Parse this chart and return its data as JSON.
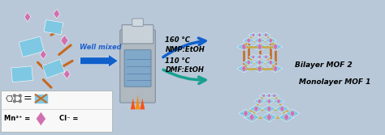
{
  "bg_color": "#dce6f0",
  "well_mixed_text": "Well mixed",
  "condition1_text": "160 °C\nNMP:EtOH",
  "condition2_text": "110 °C\nDMF:EtOH",
  "label1": "Monolayer MOF 1",
  "label2": "Bilayer MOF 2",
  "mn_label": "Mn²⁺ =",
  "cl_label": "Cl⁻ =",
  "ligand_color": "#7ec8e3",
  "node_color": "#d070b0",
  "linker_color": "#c8a840",
  "cl_color": "#c86820",
  "arrow_color1": "#1060cc",
  "arrow_color2": "#18a090",
  "text_blue": "#2060cc",
  "frame_color": "#b8c8d8",
  "autoclave_body": "#b0b8c0",
  "autoclave_dark": "#8090a0",
  "autoclave_screen": "#80a8c8"
}
